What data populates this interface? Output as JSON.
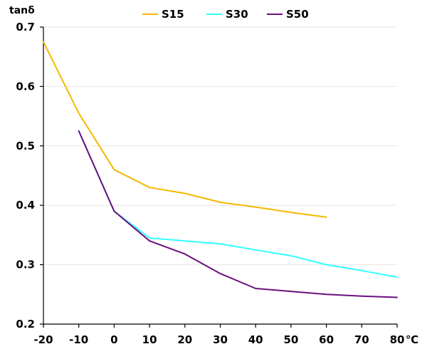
{
  "chart_data": {
    "type": "line",
    "ylabel": "tanδ",
    "xunit": "℃",
    "xlim": [
      -20,
      80
    ],
    "ylim": [
      0.2,
      0.7
    ],
    "xticks": [
      "-20",
      "-10",
      "0",
      "10",
      "20",
      "30",
      "40",
      "50",
      "60",
      "70",
      "80"
    ],
    "yticks": [
      "0.2",
      "0.3",
      "0.4",
      "0.5",
      "0.6",
      "0.7"
    ],
    "grid": "horizontal",
    "legend_position": "top-center",
    "series": [
      {
        "name": "S15",
        "color": "#f5b800",
        "x": [
          -20,
          -10,
          0,
          10,
          20,
          30,
          40,
          50,
          60
        ],
        "y": [
          0.675,
          0.555,
          0.46,
          0.43,
          0.42,
          0.405,
          0.397,
          0.388,
          0.38
        ]
      },
      {
        "name": "S30",
        "color": "#33ffff",
        "x": [
          -10,
          0,
          10,
          20,
          30,
          40,
          50,
          60,
          70,
          80
        ],
        "y": [
          0.525,
          0.39,
          0.345,
          0.34,
          0.335,
          0.325,
          0.315,
          0.3,
          0.29,
          0.279
        ]
      },
      {
        "name": "S50",
        "color": "#6b0f7f",
        "x": [
          -10,
          0,
          10,
          20,
          30,
          40,
          50,
          60,
          70,
          80
        ],
        "y": [
          0.525,
          0.39,
          0.34,
          0.318,
          0.285,
          0.26,
          0.255,
          0.25,
          0.247,
          0.245
        ]
      }
    ]
  }
}
